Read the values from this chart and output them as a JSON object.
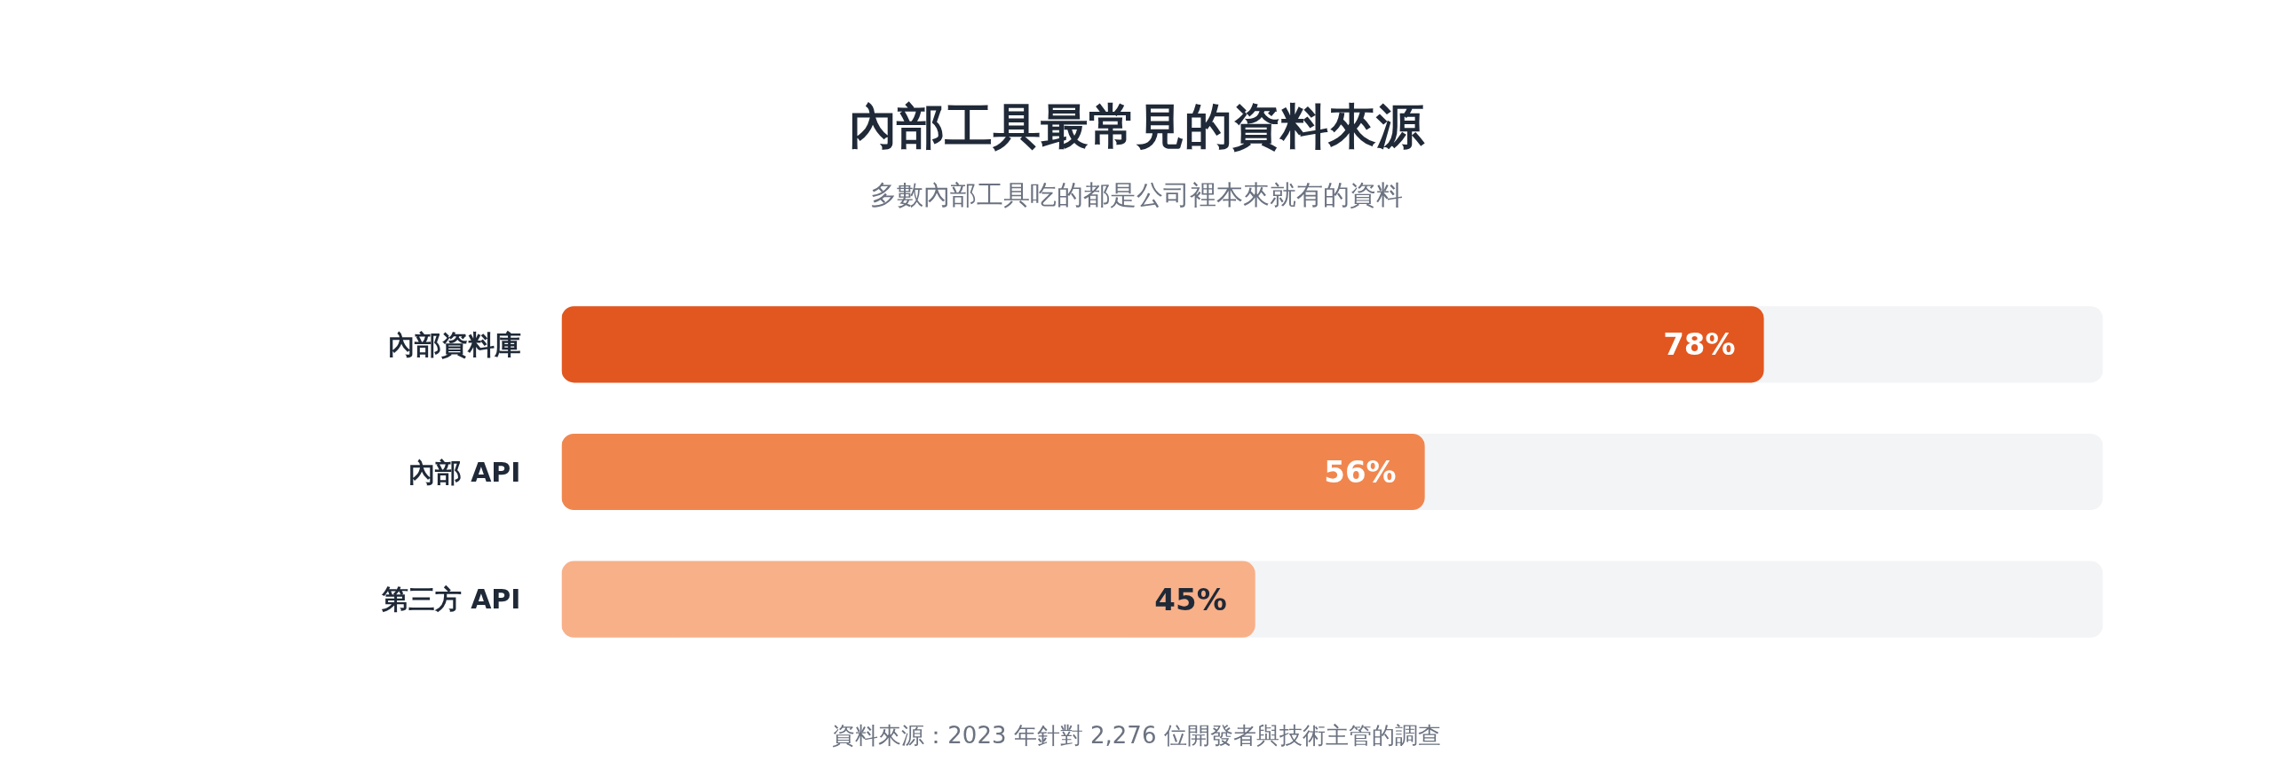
{
  "chart_data": {
    "type": "bar",
    "orientation": "horizontal",
    "title": "內部工具最常見的資料來源",
    "subtitle": "多數內部工具吃的都是公司裡本來就有的資料",
    "categories": [
      "內部資料庫",
      "內部 API",
      "第三方 API"
    ],
    "values": [
      78,
      56,
      45
    ],
    "colors": [
      "#e2571f",
      "#f0864e",
      "#f8b088"
    ],
    "value_labels": [
      "78%",
      "56%",
      "45%"
    ],
    "xlim": [
      0,
      100
    ],
    "tick_labels": "y",
    "annotations": [
      "資料來源：2023 年針對 2,276 位開發者與技術主管的調查"
    ]
  }
}
